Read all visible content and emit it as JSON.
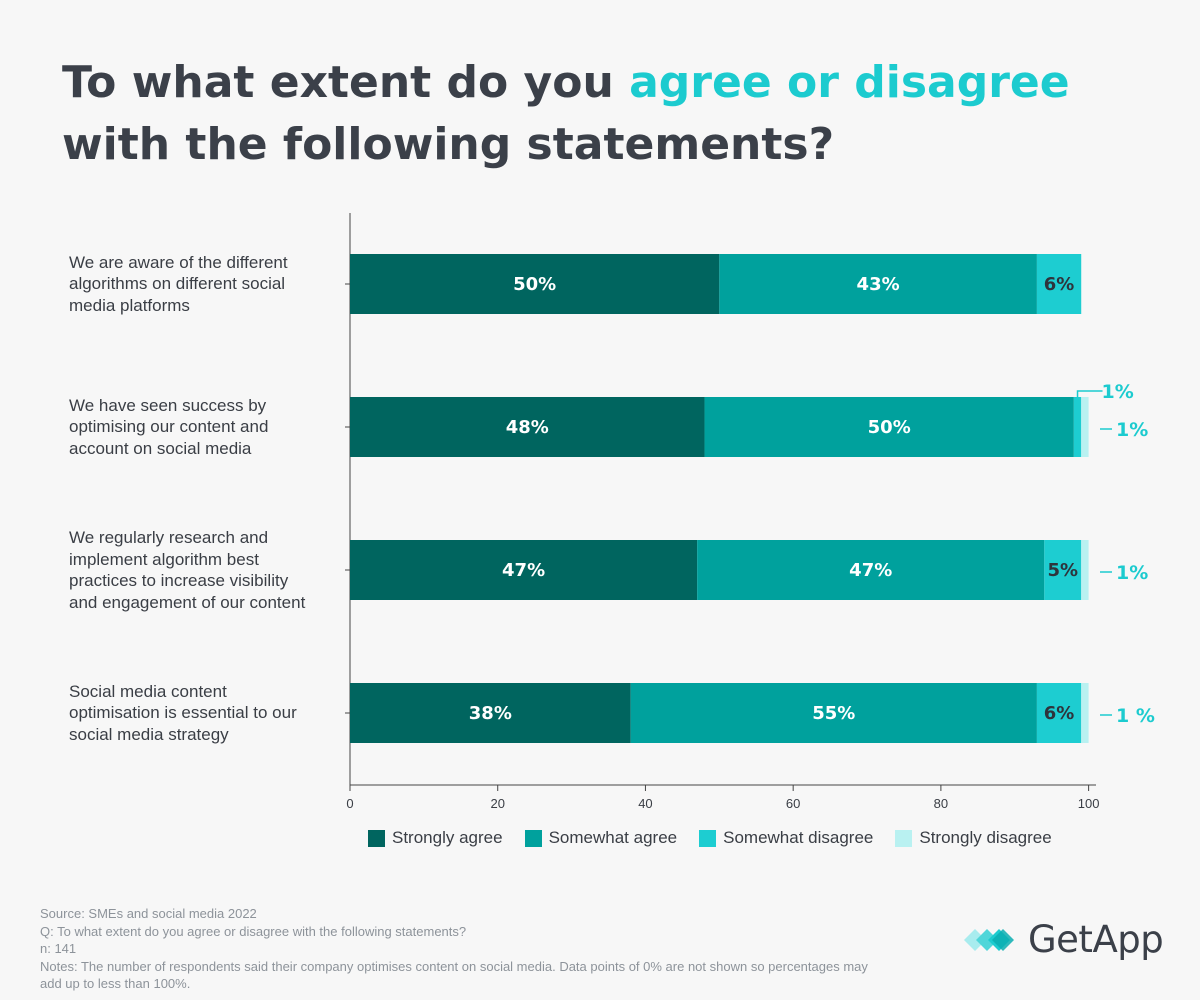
{
  "title": {
    "before": "To what extent do you ",
    "highlight": "agree or disagree",
    "after": " with the following statements?"
  },
  "colors": {
    "strongly_agree": "#00655f",
    "somewhat_agree": "#00a19d",
    "somewhat_disagree": "#1dcdd1",
    "strongly_disagree": "#b9f1f1",
    "highlight": "#1ccbcf"
  },
  "chart_data": {
    "type": "bar",
    "orientation": "horizontal",
    "stacked": true,
    "categories": [
      "We are aware of the different algorithms on different social media platforms",
      "We have seen success by optimising our content and account on social media",
      "We regularly research and implement algorithm best practices to increase visibility and engagement of our content",
      "Social media content optimisation is essential to our social media strategy"
    ],
    "series": [
      {
        "name": "Strongly agree",
        "values": [
          50,
          48,
          47,
          38
        ],
        "labels": [
          "50%",
          "48%",
          "47%",
          "38%"
        ]
      },
      {
        "name": "Somewhat agree",
        "values": [
          43,
          50,
          47,
          55
        ],
        "labels": [
          "43%",
          "50%",
          "47%",
          "55%"
        ]
      },
      {
        "name": "Somewhat disagree",
        "values": [
          6,
          1,
          5,
          6
        ],
        "labels": [
          "6%",
          "1%",
          "5%",
          "6%"
        ]
      },
      {
        "name": "Strongly disagree",
        "values": [
          0,
          1,
          1,
          1
        ],
        "labels": [
          "",
          "1%",
          "1%",
          "1 %"
        ]
      }
    ],
    "xlim": [
      0,
      101
    ],
    "xticks": [
      "0",
      "20",
      "40",
      "60",
      "80",
      "100"
    ],
    "legend_position": "bottom",
    "grid": false
  },
  "category_lines": [
    [
      "We are aware of the different",
      "algorithms on different social",
      "media platforms"
    ],
    [
      "We have seen success by",
      "optimising our content and",
      "account on social media"
    ],
    [
      "We regularly research and",
      "implement algorithm best",
      "practices to increase visibility",
      "and engagement of our content"
    ],
    [
      "Social media content",
      "optimisation is essential to our",
      "social media strategy"
    ]
  ],
  "footer": {
    "source": "Source: SMEs and social media 2022",
    "question": "Q: To what extent do you agree or disagree with the following statements?",
    "n": "n: 141",
    "notes": "Notes: The number of respondents said their company optimises content on social media. Data points of 0% are not shown so percentages may add up to less than 100%."
  },
  "logo": {
    "text": "GetApp"
  }
}
